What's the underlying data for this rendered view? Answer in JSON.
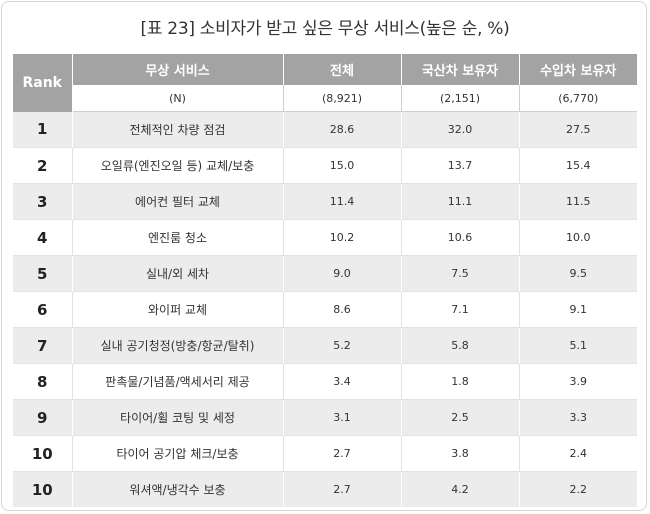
{
  "title": "[표 23] 소비자가 받고 싶은 무상 서비스(높은 순, %)",
  "headers": {
    "rank": "Rank",
    "service": "무상 서비스",
    "total": "전체",
    "domestic": "국산차 보유자",
    "imported": "수입차 보유자"
  },
  "sample_sizes": {
    "service": "(N)",
    "total": "(8,921)",
    "domestic": "(2,151)",
    "imported": "(6,770)"
  },
  "rows": [
    {
      "rank": "1",
      "service": "전체적인 차량 점검",
      "total": "28.6",
      "domestic": "32.0",
      "imported": "27.5"
    },
    {
      "rank": "2",
      "service": "오일류(엔진오일 등) 교체/보충",
      "total": "15.0",
      "domestic": "13.7",
      "imported": "15.4"
    },
    {
      "rank": "3",
      "service": "에어컨 필터 교체",
      "total": "11.4",
      "domestic": "11.1",
      "imported": "11.5"
    },
    {
      "rank": "4",
      "service": "엔진룸 청소",
      "total": "10.2",
      "domestic": "10.6",
      "imported": "10.0"
    },
    {
      "rank": "5",
      "service": "실내/외 세차",
      "total": "9.0",
      "domestic": "7.5",
      "imported": "9.5"
    },
    {
      "rank": "6",
      "service": "와이퍼 교체",
      "total": "8.6",
      "domestic": "7.1",
      "imported": "9.1"
    },
    {
      "rank": "7",
      "service": "실내 공기청정(방충/항균/탈취)",
      "total": "5.2",
      "domestic": "5.8",
      "imported": "5.1"
    },
    {
      "rank": "8",
      "service": "판촉물/기념품/액세서리 제공",
      "total": "3.4",
      "domestic": "1.8",
      "imported": "3.9"
    },
    {
      "rank": "9",
      "service": "타이어/휠 코팅 및 세정",
      "total": "3.1",
      "domestic": "2.5",
      "imported": "3.3"
    },
    {
      "rank": "10",
      "service": "타이어 공기압 체크/보충",
      "total": "2.7",
      "domestic": "3.8",
      "imported": "2.4"
    },
    {
      "rank": "10",
      "service": "워셔액/냉각수 보충",
      "total": "2.7",
      "domestic": "4.2",
      "imported": "2.2"
    }
  ]
}
